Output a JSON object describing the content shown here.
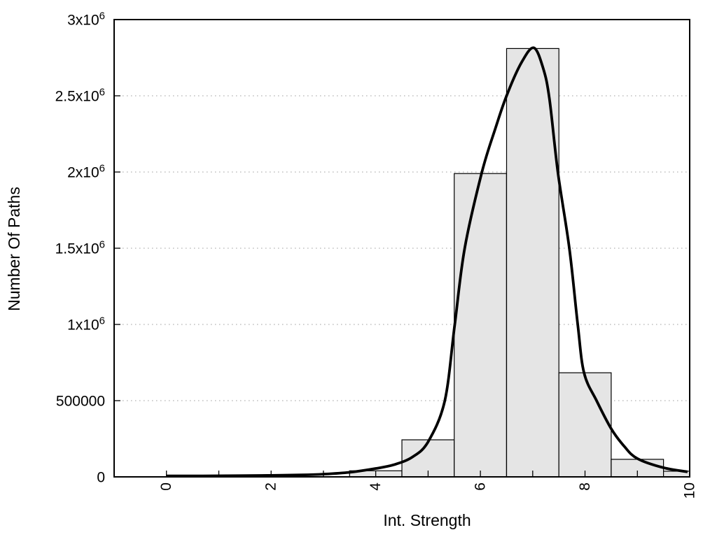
{
  "figure": {
    "background": "#ffffff"
  },
  "chart_data": {
    "type": "bar",
    "subtype": "histogram_with_fit_curve",
    "title": "",
    "xlabel": "Int. Strength",
    "ylabel": "Number Of Paths",
    "xlim": [
      -1,
      10
    ],
    "ylim": [
      0,
      3000000
    ],
    "grid": {
      "y_values": [
        500000,
        1000000,
        1500000,
        2000000,
        2500000
      ],
      "style": "dotted",
      "vertical": false
    },
    "legend": "none",
    "x_ticks": {
      "minor_values": [
        0,
        1,
        2,
        3,
        4,
        5,
        6,
        7,
        8,
        9,
        10
      ],
      "labeled": [
        {
          "value": 0,
          "label": "0"
        },
        {
          "value": 2,
          "label": "2"
        },
        {
          "value": 4,
          "label": "4"
        },
        {
          "value": 6,
          "label": "6"
        },
        {
          "value": 8,
          "label": "8"
        },
        {
          "value": 10,
          "label": "10"
        }
      ],
      "label_rotation_deg": -90
    },
    "y_ticks": [
      {
        "value": 0,
        "label": "0",
        "sup": ""
      },
      {
        "value": 500000,
        "label": "500000",
        "sup": ""
      },
      {
        "value": 1000000,
        "label": "1x10",
        "sup": "6"
      },
      {
        "value": 1500000,
        "label": "1.5x10",
        "sup": "6"
      },
      {
        "value": 2000000,
        "label": "2x10",
        "sup": "6"
      },
      {
        "value": 2500000,
        "label": "2.5x10",
        "sup": "6"
      },
      {
        "value": 3000000,
        "label": "3x10",
        "sup": "6"
      }
    ],
    "bars": [
      {
        "x_from": 3.5,
        "x_to": 4.5,
        "count": 40000
      },
      {
        "x_from": 4.5,
        "x_to": 5.5,
        "count": 243000
      },
      {
        "x_from": 5.5,
        "x_to": 6.5,
        "count": 1990000
      },
      {
        "x_from": 6.5,
        "x_to": 7.5,
        "count": 2810000
      },
      {
        "x_from": 7.5,
        "x_to": 8.5,
        "count": 683000
      },
      {
        "x_from": 8.5,
        "x_to": 9.5,
        "count": 115000
      },
      {
        "x_from": 9.5,
        "x_to": 10.5,
        "count": 37000
      }
    ],
    "curve_points": [
      [
        0,
        6000
      ],
      [
        0.7,
        6500
      ],
      [
        1.4,
        8000
      ],
      [
        2,
        9500
      ],
      [
        2.6,
        13000
      ],
      [
        3,
        18000
      ],
      [
        3.5,
        30000
      ],
      [
        4,
        55000
      ],
      [
        4.35,
        80000
      ],
      [
        4.7,
        130000
      ],
      [
        5.0,
        230000
      ],
      [
        5.32,
        500000
      ],
      [
        5.51,
        1000000
      ],
      [
        5.7,
        1500000
      ],
      [
        6.03,
        2000000
      ],
      [
        6.3,
        2300000
      ],
      [
        6.5,
        2500000
      ],
      [
        6.78,
        2715000
      ],
      [
        7.02,
        2815000
      ],
      [
        7.2,
        2680000
      ],
      [
        7.32,
        2480000
      ],
      [
        7.48,
        2000000
      ],
      [
        7.7,
        1500000
      ],
      [
        7.86,
        1000000
      ],
      [
        7.98,
        683000
      ],
      [
        8.22,
        500000
      ],
      [
        8.5,
        316000
      ],
      [
        8.75,
        200000
      ],
      [
        9.0,
        120000
      ],
      [
        9.5,
        60000
      ],
      [
        9.96,
        33000
      ]
    ],
    "colors": {
      "bar_fill": "#e5e5e5",
      "bar_stroke": "#000000",
      "curve": "#000000",
      "grid": "#b0b0b0",
      "axis": "#000000",
      "text": "#000000",
      "background": "#ffffff"
    }
  }
}
